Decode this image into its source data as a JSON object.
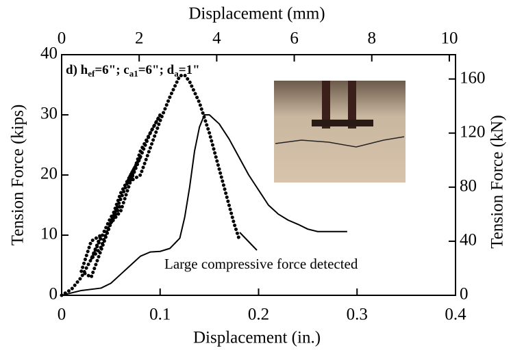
{
  "chart_data": {
    "type": "line",
    "panel_label": {
      "parts": [
        "d) h",
        "ef",
        "=6\"; c",
        "a1",
        "=6\"; d",
        "a",
        "=1\""
      ]
    },
    "xlabel": "Displacement (in.)",
    "x2label": "Displacement (mm)",
    "ylabel": "Tension Force (kips)",
    "y2label": "Tension Force (kN)",
    "xlim": [
      0,
      0.4
    ],
    "xticks": [
      0,
      0.1,
      0.2,
      0.3,
      0.4
    ],
    "x2lim": [
      0,
      10.16
    ],
    "x2ticks": [
      0,
      2,
      4,
      6,
      8,
      10
    ],
    "ylim": [
      0,
      40
    ],
    "yticks": [
      0,
      10,
      20,
      30,
      40
    ],
    "y2lim": [
      0,
      178
    ],
    "y2ticks": [
      0,
      40,
      80,
      120,
      160
    ],
    "annotation": "Large compressive force detected",
    "series": [
      {
        "color": "#000000",
        "style": "dotted",
        "x": [
          0,
          0.01,
          0.02,
          0.03,
          0.04,
          0.03,
          0.02,
          0.03,
          0.05,
          0.06,
          0.05,
          0.03,
          0.04,
          0.06,
          0.07,
          0.08,
          0.07,
          0.05,
          0.06,
          0.08,
          0.09,
          0.1,
          0.09,
          0.07,
          0.08,
          0.1,
          0.11,
          0.12,
          0.125,
          0.13,
          0.14,
          0.15,
          0.16,
          0.17,
          0.175,
          0.18
        ],
        "values": [
          0,
          1,
          3,
          6,
          10,
          9,
          4,
          3,
          12,
          15,
          13,
          6,
          8,
          17,
          20,
          23,
          20,
          12,
          14,
          24,
          27,
          30,
          27,
          19,
          20,
          29,
          33,
          36.5,
          36.6,
          35.5,
          32,
          27,
          21,
          15,
          12,
          9.5
        ]
      },
      {
        "color": "#000000",
        "style": "solid",
        "x": [
          0,
          0.02,
          0.04,
          0.05,
          0.06,
          0.07,
          0.08,
          0.09,
          0.1,
          0.11,
          0.12,
          0.125,
          0.13,
          0.135,
          0.14,
          0.145,
          0.15,
          0.16,
          0.17,
          0.18,
          0.19,
          0.2,
          0.21,
          0.22,
          0.23,
          0.24,
          0.25,
          0.26,
          0.27,
          0.28,
          0.29
        ],
        "values": [
          0,
          0.8,
          1.2,
          2,
          3.5,
          5,
          6.5,
          7.2,
          7.3,
          7.8,
          9.5,
          13,
          18,
          24,
          28,
          30,
          30,
          28.5,
          26,
          23,
          20,
          17.5,
          15,
          13.5,
          12.5,
          11.8,
          11,
          10.6,
          10.6,
          10.6,
          10.6
        ]
      }
    ]
  }
}
